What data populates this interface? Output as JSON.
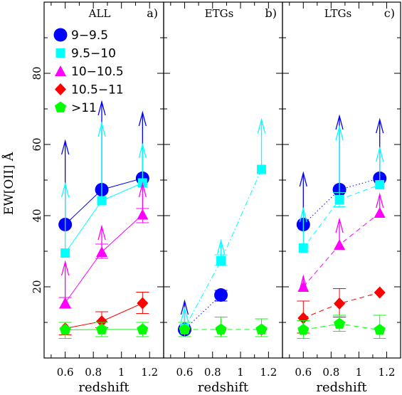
{
  "chart_data": {
    "type": "scatter",
    "ylabel": "EW[OII] Å",
    "ylim": [
      0,
      100
    ],
    "xlim": [
      0.45,
      1.3
    ],
    "yticks": [
      20,
      40,
      60,
      80
    ],
    "xticks": [
      0.6,
      0.8,
      1,
      1.2
    ],
    "x_tick_labels": [
      "0.6",
      "0.8",
      "1",
      "1.2"
    ],
    "y_tick_labels": [
      "20",
      "40",
      "60",
      "80"
    ],
    "legend": [
      {
        "label": "9−9.5",
        "color": "#0000ff",
        "marker": "circle"
      },
      {
        "label": "9.5−10",
        "color": "#00ffff",
        "marker": "square"
      },
      {
        "label": "10−10.5",
        "color": "#ff00ff",
        "marker": "triangle"
      },
      {
        "label": "10.5−11",
        "color": "#ff0000",
        "marker": "diamond"
      },
      {
        "label": ">11",
        "color": "#00ff00",
        "marker": "pentagon"
      }
    ],
    "legend_position": "top-left",
    "panels": [
      {
        "title": "ALL",
        "tag": "a)",
        "xlabel": "redshift",
        "series": [
          {
            "name": "9−9.5",
            "color": "#0000ff",
            "marker": "circle",
            "line": "solid",
            "points": [
              {
                "x": 0.6,
                "y": 37.5,
                "arrow": 61
              },
              {
                "x": 0.86,
                "y": 47.3,
                "arrow": 72
              },
              {
                "x": 1.15,
                "y": 50.5,
                "arrow": 69
              }
            ]
          },
          {
            "name": "9.5−10",
            "color": "#00ffff",
            "marker": "square",
            "line": "solid",
            "points": [
              {
                "x": 0.6,
                "y": 29.5,
                "arrow": 49
              },
              {
                "x": 0.86,
                "y": 44.2,
                "arrow": 66
              },
              {
                "x": 1.15,
                "y": 49.2,
                "arrow": 60
              }
            ]
          },
          {
            "name": "10−10.5",
            "color": "#ff00ff",
            "marker": "triangle",
            "line": "solid",
            "points": [
              {
                "x": 0.6,
                "y": 15.5,
                "err": [
                  14,
                  17
                ],
                "arrow": 27
              },
              {
                "x": 0.86,
                "y": 29.8,
                "err": [
                  28,
                  32
                ],
                "arrow": 37
              },
              {
                "x": 1.15,
                "y": 40.3,
                "err": [
                  38,
                  42
                ],
                "arrow": 49
              }
            ]
          },
          {
            "name": "10.5−11",
            "color": "#ff0000",
            "marker": "diamond",
            "line": "solid",
            "points": [
              {
                "x": 0.6,
                "y": 8.3,
                "err": [
                  6.5,
                  10
                ]
              },
              {
                "x": 0.86,
                "y": 10.3,
                "err": [
                  8.5,
                  13
                ]
              },
              {
                "x": 1.15,
                "y": 15.4,
                "err": [
                  12.5,
                  18.5
                ]
              }
            ]
          },
          {
            "name": ">11",
            "color": "#00ff00",
            "marker": "pentagon",
            "line": "solid",
            "points": [
              {
                "x": 0.6,
                "y": 7.9,
                "err": [
                  5.5,
                  10
                ]
              },
              {
                "x": 0.86,
                "y": 8.0,
                "err": [
                  6,
                  10
                ]
              },
              {
                "x": 1.15,
                "y": 8.0,
                "err": [
                  6,
                  10
                ]
              }
            ]
          }
        ]
      },
      {
        "title": "ETGs",
        "tag": "b)",
        "xlabel": "redshift",
        "series": [
          {
            "name": "9−9.5",
            "color": "#0000ff",
            "marker": "circle",
            "line": "dotted",
            "points": [
              {
                "x": 0.6,
                "y": 8.0,
                "arrow": 16
              },
              {
                "x": 0.86,
                "y": 17.7,
                "err": [
                  16,
                  19
                ]
              }
            ]
          },
          {
            "name": "9.5−10",
            "color": "#00ffff",
            "marker": "square",
            "line": "dashed-dotted",
            "points": [
              {
                "x": 0.6,
                "y": 8.4,
                "arrow": 14
              },
              {
                "x": 0.86,
                "y": 27.3,
                "err": [
                  26,
                  29
                ],
                "arrow": 33
              },
              {
                "x": 1.15,
                "y": 53.0,
                "arrow": 67
              }
            ]
          },
          {
            "name": "10.5−11",
            "color": "#ff0000",
            "marker": "diamond",
            "line": "dashed",
            "points": [
              {
                "x": 0.6,
                "y": 8.0
              },
              {
                "x": 0.86,
                "y": 8.0
              },
              {
                "x": 1.15,
                "y": 8.0
              }
            ]
          },
          {
            "name": ">11",
            "color": "#00ff00",
            "marker": "pentagon",
            "line": "dashed",
            "points": [
              {
                "x": 0.6,
                "y": 8.0,
                "err": [
                  6,
                  10
                ]
              },
              {
                "x": 0.86,
                "y": 8.0,
                "err": [
                  6,
                  11.5
                ]
              },
              {
                "x": 1.15,
                "y": 8.0,
                "err": [
                  6,
                  11
                ]
              }
            ]
          }
        ]
      },
      {
        "title": "LTGs",
        "tag": "c)",
        "xlabel": "redshift",
        "series": [
          {
            "name": "9−9.5",
            "color": "#0000ff",
            "marker": "circle",
            "line": "dotted",
            "points": [
              {
                "x": 0.6,
                "y": 37.5,
                "arrow": 52
              },
              {
                "x": 0.86,
                "y": 47.3,
                "arrow": 68
              },
              {
                "x": 1.15,
                "y": 50.5,
                "arrow": 67
              }
            ]
          },
          {
            "name": "9.5−10",
            "color": "#00ffff",
            "marker": "square",
            "line": "dashed",
            "points": [
              {
                "x": 0.6,
                "y": 30.9,
                "arrow": 42
              },
              {
                "x": 0.86,
                "y": 44.5,
                "err": [
                  42.5,
                  46.5
                ],
                "arrow": 65
              },
              {
                "x": 1.15,
                "y": 48.7,
                "arrow": 59
              }
            ]
          },
          {
            "name": "10−10.5",
            "color": "#ff00ff",
            "marker": "triangle",
            "line": "dashed",
            "points": [
              {
                "x": 0.6,
                "y": 20.0,
                "arrow": 23
              },
              {
                "x": 0.86,
                "y": 31.8,
                "arrow": 39
              },
              {
                "x": 1.15,
                "y": 40.8,
                "arrow": 46
              }
            ]
          },
          {
            "name": "10.5−11",
            "color": "#ff0000",
            "marker": "diamond",
            "line": "dashed",
            "points": [
              {
                "x": 0.6,
                "y": 11.2,
                "err": [
                  7,
                  16
                ]
              },
              {
                "x": 0.86,
                "y": 15.3,
                "err": [
                  11.5,
                  19.5
                ]
              },
              {
                "x": 1.15,
                "y": 18.4
              }
            ]
          },
          {
            "name": ">11",
            "color": "#00ff00",
            "marker": "pentagon",
            "line": "dashed",
            "points": [
              {
                "x": 0.6,
                "y": 7.9,
                "err": [
                  5.5,
                  10.5
                ]
              },
              {
                "x": 0.86,
                "y": 9.6,
                "err": [
                  7.5,
                  12
                ]
              },
              {
                "x": 1.15,
                "y": 7.9,
                "err": [
                  5.5,
                  12
                ]
              }
            ]
          }
        ]
      }
    ]
  }
}
